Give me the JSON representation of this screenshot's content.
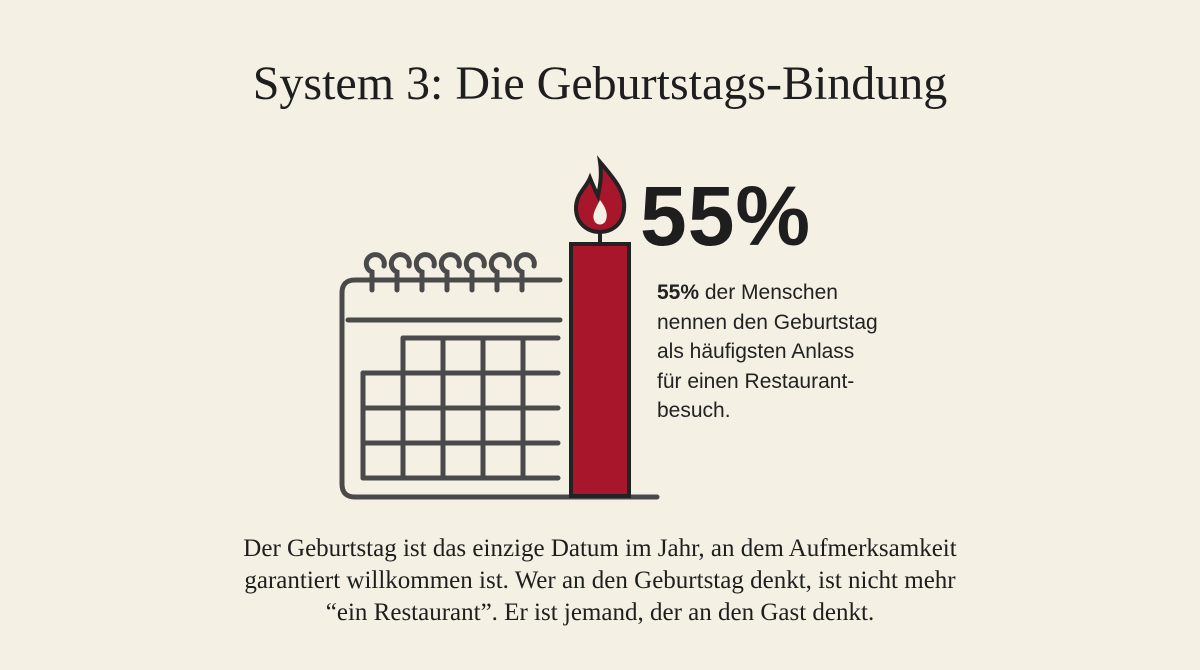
{
  "header": {
    "title": "System 3: Die Geburtstags-Bindung"
  },
  "stat": {
    "big": "55%",
    "highlight": "55%",
    "lines": [
      "der Menschen",
      "nennen den Geburtstag",
      "als häufigsten Anlass",
      "für einen Restaurant-",
      "besuch."
    ]
  },
  "body": {
    "lines": [
      "Der Geburtstag ist das einzige Datum im Jahr, an dem Aufmerksamkeit",
      "garantiert willkommen ist. Wer an den Geburtstag denkt, ist nicht mehr",
      "“ein Restaurant”. Er ist jemand, der an den Gast denkt."
    ]
  }
}
